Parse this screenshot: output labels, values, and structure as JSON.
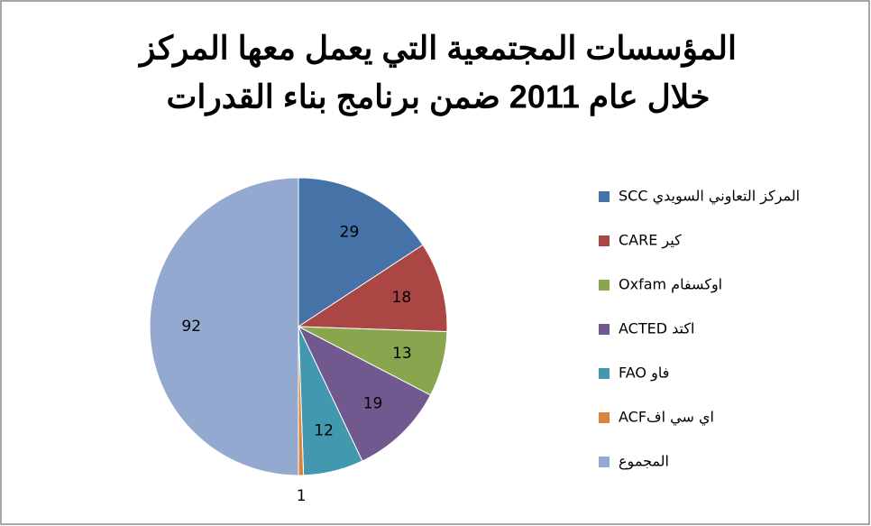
{
  "chart_data": {
    "type": "pie",
    "title": [
      "المؤسسات المجتمعية التي يعمل معها المركز",
      "خلال عام 2011 ضمن برنامج بناء القدرات"
    ],
    "categories": [
      "المركز التعاوني السويدي SCC",
      "كير CARE",
      "اوكسفام Oxfam",
      "اكتد ACTED",
      "فاو FAO",
      "اي سي افACF",
      "المجموع"
    ],
    "values": [
      29,
      18,
      13,
      19,
      12,
      1,
      92
    ],
    "colors": [
      "#4572a7",
      "#aa4643",
      "#89a54e",
      "#71588f",
      "#4198af",
      "#db843d",
      "#93a9cf"
    ],
    "legend": "right"
  }
}
